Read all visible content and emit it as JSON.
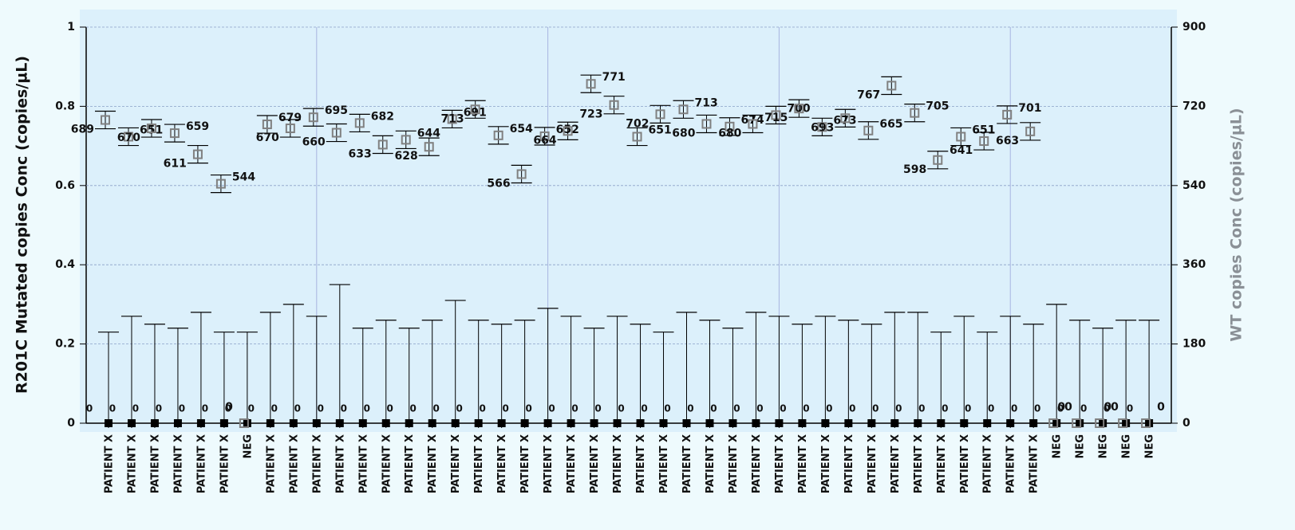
{
  "chart_data": {
    "type": "errorbar",
    "ylabel": "R201C Mutated copies Conc (copies/µL)",
    "y2label": "WT copies Conc (copies/µL)",
    "categories": [
      "PATIENT X",
      "PATIENT X",
      "PATIENT X",
      "PATIENT X",
      "PATIENT X",
      "PATIENT X",
      "NEG",
      "PATIENT X",
      "PATIENT X",
      "PATIENT X",
      "PATIENT X",
      "PATIENT X",
      "PATIENT X",
      "PATIENT X",
      "PATIENT X",
      "PATIENT X",
      "PATIENT X",
      "PATIENT X",
      "PATIENT X",
      "PATIENT X",
      "PATIENT X",
      "PATIENT X",
      "PATIENT X",
      "PATIENT X",
      "PATIENT X",
      "PATIENT X",
      "PATIENT X",
      "PATIENT X",
      "PATIENT X",
      "PATIENT X",
      "PATIENT X",
      "PATIENT X",
      "PATIENT X",
      "PATIENT X",
      "PATIENT X",
      "PATIENT X",
      "PATIENT X",
      "PATIENT X",
      "PATIENT X",
      "PATIENT X",
      "PATIENT X",
      "NEG",
      "NEG",
      "NEG",
      "NEG",
      "NEG"
    ],
    "series": [
      {
        "name": "Mutated",
        "color": "#000000",
        "axis": "y",
        "marker": "filled",
        "values": [
          0,
          0,
          0,
          0,
          0,
          0,
          0,
          0,
          0,
          0,
          0,
          0,
          0,
          0,
          0,
          0,
          0,
          0,
          0,
          0,
          0,
          0,
          0,
          0,
          0,
          0,
          0,
          0,
          0,
          0,
          0,
          0,
          0,
          0,
          0,
          0,
          0,
          0,
          0,
          0,
          0,
          0,
          0,
          0,
          0,
          0
        ],
        "errors": [
          0.23,
          0.27,
          0.25,
          0.24,
          0.28,
          0.23,
          0.23,
          0.28,
          0.3,
          0.27,
          0.35,
          0.24,
          0.26,
          0.24,
          0.26,
          0.31,
          0.26,
          0.25,
          0.26,
          0.29,
          0.27,
          0.24,
          0.27,
          0.25,
          0.23,
          0.28,
          0.26,
          0.24,
          0.28,
          0.27,
          0.25,
          0.27,
          0.26,
          0.25,
          0.28,
          0.28,
          0.23,
          0.27,
          0.23,
          0.27,
          0.25,
          0.3,
          0.26,
          0.24,
          0.26,
          0.26
        ]
      },
      {
        "name": "WT",
        "color": "#808080",
        "axis": "y2",
        "marker": "open",
        "values": [
          689,
          651,
          670,
          659,
          611,
          544,
          0,
          679,
          670,
          695,
          660,
          682,
          633,
          644,
          628,
          691,
          713,
          654,
          566,
          652,
          664,
          771,
          723,
          651,
          702,
          713,
          680,
          674,
          680,
          700,
          715,
          673,
          693,
          665,
          767,
          705,
          598,
          651,
          641,
          701,
          663,
          0,
          0,
          0,
          0,
          0
        ],
        "errors": [
          20,
          20,
          20,
          20,
          20,
          20,
          0,
          20,
          20,
          20,
          20,
          20,
          20,
          20,
          20,
          20,
          20,
          20,
          20,
          20,
          20,
          20,
          20,
          20,
          20,
          20,
          20,
          20,
          20,
          20,
          20,
          20,
          20,
          20,
          20,
          20,
          20,
          20,
          20,
          20,
          20,
          0,
          0,
          0,
          0,
          0
        ]
      }
    ],
    "ylim": [
      0,
      1
    ],
    "yticks": [
      0,
      0.2,
      0.4,
      0.6,
      0.8,
      1
    ],
    "y2lim": [
      0,
      900
    ],
    "y2ticks": [
      0,
      180,
      360,
      540,
      720,
      900
    ],
    "grid": true
  }
}
